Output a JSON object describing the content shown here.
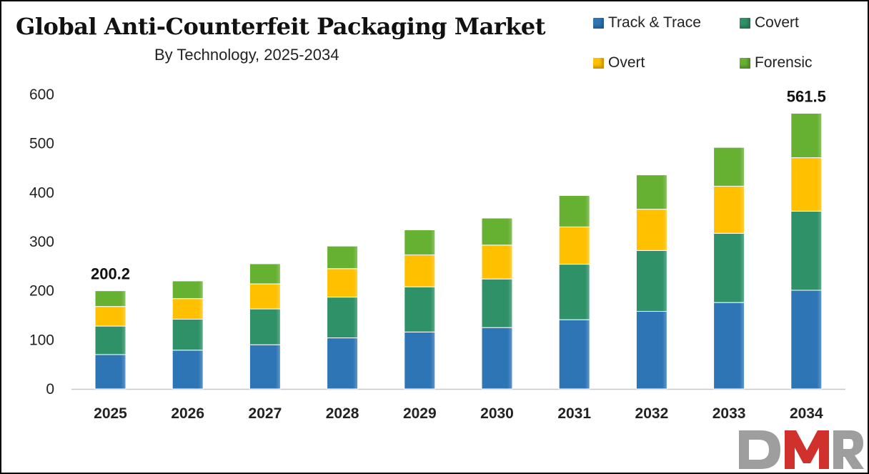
{
  "chart_data": {
    "type": "bar",
    "stacked": true,
    "title": "Global Anti-Counterfeit Packaging Market",
    "subtitle": "By Technology,  2025-2034",
    "categories": [
      "2025",
      "2026",
      "2027",
      "2028",
      "2029",
      "2030",
      "2031",
      "2032",
      "2033",
      "2034"
    ],
    "series": [
      {
        "name": "Track & Trace",
        "color": "#2e75b6",
        "values": [
          70,
          79,
          90,
          104,
          116,
          125,
          141,
          158,
          176,
          201
        ]
      },
      {
        "name": "Covert",
        "color": "#2e9168",
        "values": [
          58,
          63,
          73,
          83,
          92,
          99,
          113,
          124,
          141,
          161
        ]
      },
      {
        "name": "Overt",
        "color": "#ffc000",
        "values": [
          40,
          42,
          51,
          58,
          65,
          69,
          76,
          84,
          96,
          109
        ]
      },
      {
        "name": "Forensic",
        "color": "#66b032",
        "values": [
          32,
          36,
          41,
          46,
          51,
          55,
          64,
          70,
          79,
          90.5
        ]
      }
    ],
    "totals_labels": [
      {
        "category": "2025",
        "label": "200.2"
      },
      {
        "category": "2034",
        "label": "561.5"
      }
    ],
    "ylim": [
      0,
      600
    ],
    "yticks": [
      0,
      100,
      200,
      300,
      400,
      500,
      600
    ],
    "xlabel": "",
    "ylabel": "",
    "grid": false,
    "legend_position": "top-right"
  },
  "legend": {
    "items": [
      {
        "label": "Track & Trace",
        "color": "#2e75b6"
      },
      {
        "label": "Covert",
        "color": "#2e9168"
      },
      {
        "label": "Overt",
        "color": "#ffc000"
      },
      {
        "label": "Forensic",
        "color": "#66b032"
      }
    ]
  },
  "logo": {
    "text": "DMR",
    "colors": [
      "#9e9e9e",
      "#d0312d"
    ]
  }
}
